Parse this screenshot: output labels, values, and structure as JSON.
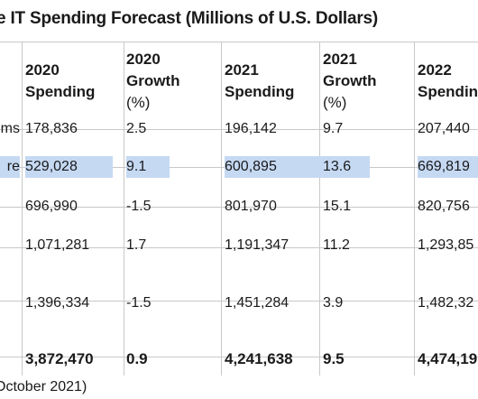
{
  "title": "e IT Spending Forecast (Millions of U.S. Dollars)",
  "headers": [
    [
      "2020",
      "Spending"
    ],
    [
      "2020",
      "Growth",
      "(%)"
    ],
    [
      "2021",
      "Spending"
    ],
    [
      "2021",
      "Growth",
      "(%)"
    ],
    [
      "2022",
      "Spendin"
    ]
  ],
  "rows": [
    {
      "label": "ms",
      "values": [
        "178,836",
        "2.5",
        "196,142",
        "9.7",
        "207,440"
      ],
      "highlight": false,
      "bold": false
    },
    {
      "label": "re",
      "values": [
        "529,028",
        "9.1",
        "600,895",
        "13.6",
        "669,819"
      ],
      "highlight": true,
      "bold": false
    },
    {
      "label": "",
      "values": [
        "696,990",
        "-1.5",
        "801,970",
        "15.1",
        "820,756"
      ],
      "highlight": false,
      "bold": false
    },
    {
      "label": "",
      "values": [
        "1,071,281",
        "1.7",
        "1,191,347",
        "11.2",
        "1,293,85"
      ],
      "highlight": false,
      "bold": false
    },
    {
      "label": "",
      "values": [
        "1,396,334",
        "-1.5",
        "1,451,284",
        "3.9",
        "1,482,32"
      ],
      "highlight": false,
      "bold": false
    },
    {
      "label": "",
      "values": [
        "3,872,470",
        "0.9",
        "4,241,638",
        "9.5",
        "4,474,19"
      ],
      "highlight": false,
      "bold": true
    }
  ],
  "source": "October 2021)",
  "colors": {
    "highlight": "#c5d9f3",
    "grid": "#c8c8c8"
  }
}
